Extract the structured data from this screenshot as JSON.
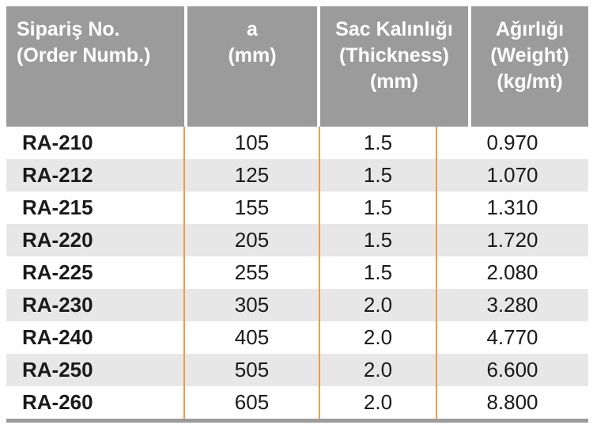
{
  "theme": {
    "header_bg": "#9b9b9b",
    "stripe_bg": "#e7e7e8",
    "separator_orange": "#ee9c48",
    "bottom_border_gray": "#9b9b9b",
    "header_text": "#ffffff",
    "body_text": "#1a1a1a"
  },
  "table": {
    "header": [
      {
        "lines": [
          "Sipariş No.",
          "(Order Numb.)"
        ]
      },
      {
        "lines": [
          "a",
          "(mm)"
        ]
      },
      {
        "lines": [
          "Sac Kalınlığı",
          "(Thickness)",
          "(mm)"
        ]
      },
      {
        "lines": [
          "Ağırlığı",
          "(Weight)",
          "(kg/mt)"
        ]
      }
    ],
    "rows": [
      {
        "order_no": "RA-210",
        "a": "105",
        "thickness": "1.5",
        "weight": "0.970"
      },
      {
        "order_no": "RA-212",
        "a": "125",
        "thickness": "1.5",
        "weight": "1.070"
      },
      {
        "order_no": "RA-215",
        "a": "155",
        "thickness": "1.5",
        "weight": "1.310"
      },
      {
        "order_no": "RA-220",
        "a": "205",
        "thickness": "1.5",
        "weight": "1.720"
      },
      {
        "order_no": "RA-225",
        "a": "255",
        "thickness": "1.5",
        "weight": "2.080"
      },
      {
        "order_no": "RA-230",
        "a": "305",
        "thickness": "2.0",
        "weight": "3.280"
      },
      {
        "order_no": "RA-240",
        "a": "405",
        "thickness": "2.0",
        "weight": "4.770"
      },
      {
        "order_no": "RA-250",
        "a": "505",
        "thickness": "2.0",
        "weight": "6.600"
      },
      {
        "order_no": "RA-260",
        "a": "605",
        "thickness": "2.0",
        "weight": "8.800"
      }
    ]
  }
}
